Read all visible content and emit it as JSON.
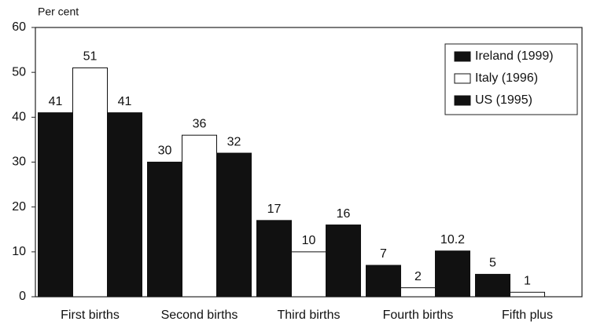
{
  "chart_data": {
    "type": "bar",
    "y_label": "Per cent",
    "categories": [
      "First births",
      "Second births",
      "Third births",
      "Fourth births",
      "Fifth plus"
    ],
    "series": [
      {
        "name": "Ireland (1999)",
        "color": "#111111",
        "values": [
          41,
          30,
          17,
          7,
          5
        ]
      },
      {
        "name": "Italy (1996)",
        "color": "#ffffff",
        "values": [
          51,
          36,
          10,
          2,
          1
        ]
      },
      {
        "name": "US (1995)",
        "color": "#111111",
        "values": [
          41,
          32,
          16,
          10.2,
          null
        ]
      }
    ],
    "ylim": [
      0,
      60
    ],
    "yticks": [
      0,
      10,
      20,
      30,
      40,
      50,
      60
    ],
    "legend": "upper right"
  }
}
